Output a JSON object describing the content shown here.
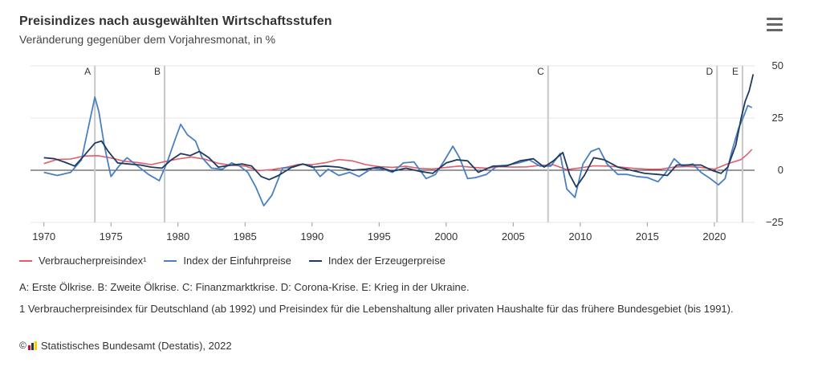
{
  "header": {
    "title": "Preisindizes nach ausgewählten Wirtschaftsstufen",
    "subtitle": "Veränderung gegenüber dem Vorjahresmonat, in %"
  },
  "colors": {
    "cpi": "#e35d6a",
    "import": "#4a7fc1",
    "producer": "#1f3a5f",
    "grid": "#e6e6e6",
    "event_line": "#c8c8c8",
    "axis_text": "#333333"
  },
  "chart_data": {
    "type": "line",
    "title": "Preisindizes nach ausgewählten Wirtschaftsstufen",
    "subtitle": "Veränderung gegenüber dem Vorjahresmonat, in %",
    "xlim": [
      1969.0,
      2023.0
    ],
    "ylim": [
      -25,
      50
    ],
    "x_ticks": [
      1970,
      1975,
      1980,
      1985,
      1990,
      1995,
      2000,
      2005,
      2010,
      2015,
      2020
    ],
    "x_tick_labels": [
      "1970",
      "1975",
      "1980",
      "1985",
      "1990",
      "1995",
      "2000",
      "2005",
      "2010",
      "2015",
      "2020"
    ],
    "y_ticks": [
      50,
      25,
      0,
      -25
    ],
    "y_tick_labels": [
      "50",
      "25",
      "0",
      "−25"
    ],
    "y_axis_side": "right",
    "grid": true,
    "legend_position": "bottom-left",
    "events": [
      {
        "label": "A",
        "x": 1973.8
      },
      {
        "label": "B",
        "x": 1979.0
      },
      {
        "label": "C",
        "x": 2007.6
      },
      {
        "label": "D",
        "x": 2020.2
      },
      {
        "label": "E",
        "x": 2022.1
      }
    ],
    "series": [
      {
        "name": "Verbraucherpreisindex¹",
        "color": "#e35d6a",
        "x": [
          1970,
          1971,
          1972,
          1973,
          1974,
          1975,
          1976,
          1977,
          1978,
          1979,
          1980,
          1981,
          1982,
          1983,
          1984,
          1985,
          1986,
          1987,
          1988,
          1989,
          1990,
          1991,
          1992,
          1993,
          1994,
          1995,
          1996,
          1997,
          1998,
          1999,
          2000,
          2001,
          2002,
          2003,
          2004,
          2005,
          2006,
          2007,
          2008,
          2009,
          2010,
          2011,
          2012,
          2013,
          2014,
          2015,
          2016,
          2017,
          2018,
          2019,
          2020,
          2021,
          2022.0,
          2022.5,
          2022.8
        ],
        "y": [
          3.2,
          5.2,
          5.4,
          6.8,
          7.0,
          5.9,
          4.3,
          3.7,
          2.7,
          4.1,
          5.4,
          6.3,
          5.3,
          3.3,
          2.4,
          2.0,
          -0.2,
          0.3,
          1.3,
          2.8,
          2.7,
          3.6,
          5.1,
          4.5,
          2.7,
          1.7,
          1.4,
          1.9,
          0.9,
          0.6,
          1.4,
          2.0,
          1.4,
          1.0,
          1.7,
          1.5,
          1.6,
          2.3,
          2.6,
          0.3,
          1.1,
          2.1,
          2.0,
          1.5,
          0.9,
          0.5,
          0.5,
          1.5,
          1.8,
          1.4,
          0.5,
          3.1,
          5.1,
          7.9,
          10.0
        ]
      },
      {
        "name": "Index der Einfuhrpreise",
        "color": "#4a7fc1",
        "x": [
          1970,
          1971,
          1972,
          1972.8,
          1973.3,
          1973.8,
          1974.1,
          1974.5,
          1975.0,
          1975.6,
          1976.2,
          1977.0,
          1977.8,
          1978.6,
          1979.2,
          1979.8,
          1980.2,
          1980.7,
          1981.3,
          1981.8,
          1982.5,
          1983.3,
          1984.0,
          1984.6,
          1985.2,
          1985.8,
          1986.4,
          1987.0,
          1987.8,
          1988.6,
          1989.3,
          1990.0,
          1990.6,
          1991.2,
          1992.0,
          1992.8,
          1993.5,
          1994.5,
          1995.3,
          1996.0,
          1996.8,
          1997.6,
          1998.5,
          1999.2,
          1999.8,
          2000.5,
          2001.0,
          2001.6,
          2002.2,
          2003.0,
          2003.8,
          2004.6,
          2005.4,
          2006.2,
          2007.0,
          2007.8,
          2008.5,
          2009.0,
          2009.6,
          2010.2,
          2010.8,
          2011.4,
          2012.0,
          2012.8,
          2013.5,
          2014.2,
          2015.0,
          2015.8,
          2016.4,
          2017.0,
          2017.6,
          2018.4,
          2019.0,
          2019.7,
          2020.3,
          2020.8,
          2021.3,
          2021.8,
          2022.2,
          2022.5,
          2022.8
        ],
        "y": [
          -1.0,
          -2.5,
          -1.0,
          5.0,
          20.0,
          35.0,
          28.0,
          12.0,
          -3.0,
          2.0,
          6.0,
          2.0,
          -2.0,
          -5.0,
          4.0,
          15.0,
          22.0,
          17.0,
          14.0,
          6.0,
          1.0,
          0.5,
          3.5,
          2.0,
          -1.0,
          -8.0,
          -17.0,
          -12.0,
          1.0,
          1.5,
          3.0,
          2.0,
          -3.0,
          0.5,
          -2.5,
          -1.0,
          -3.0,
          1.0,
          0.5,
          -1.0,
          3.5,
          4.0,
          -4.0,
          -2.0,
          4.0,
          11.5,
          6.0,
          -4.0,
          -3.5,
          -2.0,
          2.0,
          2.5,
          3.5,
          5.0,
          2.0,
          2.0,
          8.0,
          -9.0,
          -13.0,
          3.0,
          9.0,
          10.5,
          3.0,
          -2.0,
          -2.0,
          -3.0,
          -3.5,
          -5.5,
          -1.0,
          5.5,
          2.0,
          3.0,
          -1.0,
          -4.0,
          -7.0,
          -4.0,
          9.0,
          20.0,
          26.0,
          31.0,
          30.0
        ]
      },
      {
        "name": "Index der Erzeugerpreise",
        "color": "#1f3a5f",
        "x": [
          1970,
          1970.8,
          1971.5,
          1972.3,
          1973.0,
          1973.8,
          1974.3,
          1974.8,
          1975.5,
          1976.3,
          1977.2,
          1978.0,
          1978.8,
          1979.5,
          1980.2,
          1980.9,
          1981.6,
          1982.3,
          1983.0,
          1984.0,
          1984.8,
          1985.5,
          1986.2,
          1986.8,
          1987.5,
          1988.5,
          1989.3,
          1990.0,
          1991.0,
          1992.0,
          1993.0,
          1994.0,
          1995.0,
          1996.0,
          1997.0,
          1998.0,
          1999.0,
          2000.0,
          2000.8,
          2001.6,
          2002.4,
          2003.5,
          2004.5,
          2005.5,
          2006.5,
          2007.3,
          2008.0,
          2008.7,
          2009.2,
          2009.7,
          2010.3,
          2011.0,
          2011.8,
          2012.8,
          2013.8,
          2014.8,
          2015.8,
          2016.5,
          2017.2,
          2018.2,
          2019.0,
          2019.8,
          2020.5,
          2021.0,
          2021.6,
          2022.0,
          2022.3,
          2022.6,
          2022.9
        ],
        "y": [
          6.0,
          5.5,
          4.0,
          2.0,
          7.0,
          13.0,
          14.0,
          9.0,
          3.5,
          3.0,
          2.5,
          1.5,
          1.0,
          5.0,
          8.0,
          7.0,
          9.0,
          6.0,
          1.5,
          2.5,
          3.0,
          2.0,
          -3.0,
          -4.5,
          -2.5,
          1.5,
          3.0,
          1.5,
          2.0,
          1.5,
          0.0,
          0.5,
          1.5,
          -0.5,
          1.0,
          -0.5,
          -1.5,
          3.5,
          5.0,
          4.5,
          -1.0,
          2.0,
          2.0,
          4.5,
          5.5,
          1.5,
          4.5,
          8.5,
          -2.0,
          -8.0,
          -2.5,
          6.0,
          5.0,
          1.5,
          0.0,
          -1.5,
          -2.0,
          -2.5,
          2.5,
          2.5,
          2.5,
          0.0,
          -1.5,
          1.5,
          12.0,
          25.0,
          33.0,
          38.0,
          46.0
        ]
      }
    ]
  },
  "legend": {
    "items": [
      {
        "label": "Verbraucherpreisindex¹"
      },
      {
        "label": "Index der Einfuhrpreise"
      },
      {
        "label": "Index der Erzeugerpreise"
      }
    ]
  },
  "notes": {
    "events": "A: Erste Ölkrise. B: Zweite Ölkrise. C: Finanzmarktkrise. D: Corona-Krise. E: Krieg in der Ukraine.",
    "footnote": "1 Verbraucherpreisindex für Deutschland (ab 1992) und Preisindex für die Lebenshaltung aller privaten Haushalte für das frühere Bundesgebiet (bis 1991).",
    "copyright_symbol": "©",
    "source": "Statistisches Bundesamt (Destatis), 2022"
  },
  "icons": {
    "menu": "hamburger-menu-icon",
    "logo": "destatis-logo-icon"
  }
}
